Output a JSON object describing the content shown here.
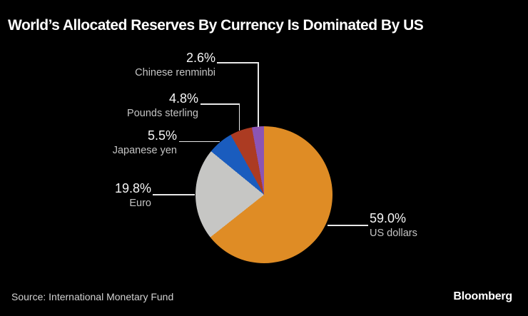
{
  "header": {
    "title": "World’s Allocated Reserves By Currency Is Dominated By US"
  },
  "footer": {
    "source": "Source: International Monetary Fund",
    "brand": "Bloomberg"
  },
  "colors": {
    "background": "#000000",
    "leader_line": "#E8E8E8",
    "percent_text": "#F5F5F5",
    "name_text": "#C4C4C4",
    "title_text": "#FFFFFF"
  },
  "chart_data": {
    "type": "pie",
    "title": "World’s Allocated Reserves By Currency Is Dominated By US",
    "unit": "percent",
    "slices": [
      {
        "label": "US dollars",
        "value": 59.0,
        "display": "59.0%",
        "color": "#DF8C25"
      },
      {
        "label": "Euro",
        "value": 19.8,
        "display": "19.8%",
        "color": "#C6C6C4"
      },
      {
        "label": "Japanese yen",
        "value": 5.5,
        "display": "5.5%",
        "color": "#1A5CBE"
      },
      {
        "label": "Pounds sterling",
        "value": 4.8,
        "display": "4.8%",
        "color": "#AC3B22"
      },
      {
        "label": "Chinese renminbi",
        "value": 2.6,
        "display": "2.6%",
        "color": "#8C55B4"
      }
    ],
    "start_angle_deg": 0,
    "direction": "clockwise",
    "normalized_to_shown_total": true,
    "legend_position": "callout-labels",
    "source": "Source: International Monetary Fund"
  }
}
